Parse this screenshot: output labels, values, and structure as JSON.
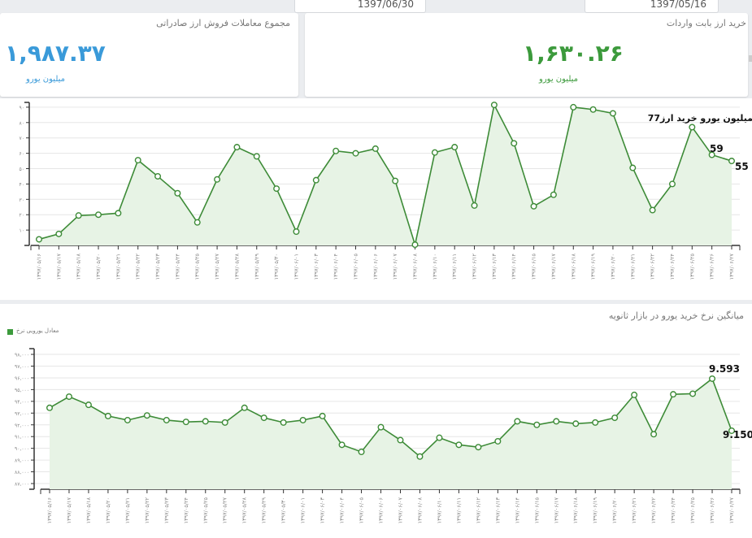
{
  "filters": {
    "to_date": "1397/06/30",
    "from_date": "1397/05/16"
  },
  "cards": {
    "export": {
      "title": "مجموع معاملات فروش ارز صادراتی",
      "value": "۱,۹۸۷.۳۷",
      "unit": "میلیون یورو",
      "color": "#3a9ad9"
    },
    "import": {
      "title": "خرید ارز بابت واردات",
      "value": "۱,۶۳۰.۲۶",
      "unit": "میلیون یورو",
      "color": "#3c9a3c"
    }
  },
  "colors": {
    "line": "#3d8b37",
    "fill": "#e7f3e5",
    "grid": "#e6e6e6",
    "axis": "#333333"
  },
  "chart_data": [
    {
      "type": "area",
      "title": "",
      "xlabel": "",
      "ylabel": "",
      "ylim": [
        0,
        95
      ],
      "yticks": [
        10,
        20,
        30,
        40,
        50,
        60,
        70,
        80,
        90
      ],
      "ytick_labels": [
        "۱۰",
        "۲۰",
        "۳۰",
        "۴۰",
        "۵۰",
        "۶۰",
        "۷۰",
        "۸۰",
        "۹۰"
      ],
      "grid": true,
      "categories": [
        "۱۳۹۷/۰۵/۱۶",
        "۱۳۹۷/۰۵/۱۷",
        "۱۳۹۷/۰۵/۱۸",
        "۱۳۹۷/۰۵/۲۰",
        "۱۳۹۷/۰۵/۲۱",
        "۱۳۹۷/۰۵/۲۲",
        "۱۳۹۷/۰۵/۲۳",
        "۱۳۹۷/۰۵/۲۴",
        "۱۳۹۷/۰۵/۲۵",
        "۱۳۹۷/۰۵/۲۷",
        "۱۳۹۷/۰۵/۲۸",
        "۱۳۹۷/۰۵/۲۹",
        "۱۳۹۷/۰۵/۳۰",
        "۱۳۹۷/۰۶/۰۱",
        "۱۳۹۷/۰۶/۰۳",
        "۱۳۹۷/۰۶/۰۴",
        "۱۳۹۷/۰۶/۰۵",
        "۱۳۹۷/۰۶/۰۶",
        "۱۳۹۷/۰۶/۰۷",
        "۱۳۹۷/۰۶/۰۸",
        "۱۳۹۷/۰۶/۱۰",
        "۱۳۹۷/۰۶/۱۱",
        "۱۳۹۷/۰۶/۱۲",
        "۱۳۹۷/۰۶/۱۳",
        "۱۳۹۷/۰۶/۱۴",
        "۱۳۹۷/۰۶/۱۵",
        "۱۳۹۷/۰۶/۱۷",
        "۱۳۹۷/۰۶/۱۸",
        "۱۳۹۷/۰۶/۱۹",
        "۱۳۹۷/۰۶/۲۰",
        "۱۳۹۷/۰۶/۲۱",
        "۱۳۹۷/۰۶/۲۲",
        "۱۳۹۷/۰۶/۲۴",
        "۱۳۹۷/۰۶/۲۵",
        "۱۳۹۷/۰۶/۲۶",
        "۱۳۹۷/۰۶/۲۷"
      ],
      "series": [
        {
          "name": "میلیون یورو خرید ارز",
          "values": [
            4,
            7.5,
            19.5,
            20,
            21,
            55.5,
            45,
            34,
            15,
            43,
            64,
            58,
            37,
            9,
            42.5,
            61.5,
            60,
            63,
            42,
            0.5,
            60.5,
            64,
            26,
            91.5,
            66.5,
            25.5,
            33,
            90,
            88.5,
            86,
            50.5,
            23,
            40,
            77,
            59,
            55
          ]
        }
      ],
      "annotations": [
        {
          "index": 33,
          "text": "77میلیون یورو خرید ارز"
        },
        {
          "index": 34,
          "text": "59"
        },
        {
          "index": 35,
          "text": "55"
        }
      ]
    },
    {
      "type": "area",
      "title": "میانگین نرخ خرید یورو در بازار ثانویه",
      "xlabel": "",
      "ylabel": "",
      "ylim": [
        86700,
        98500
      ],
      "yticks": [
        87000,
        88000,
        89000,
        90000,
        91000,
        92000,
        93000,
        94000,
        95000,
        96000,
        97000,
        98000
      ],
      "ytick_labels": [
        "۸۷,۰۰۰",
        "۸۸,۰۰۰",
        "۸۹,۰۰۰",
        "۹۰,۰۰۰",
        "۹۱,۰۰۰",
        "۹۲,۰۰۰",
        "۹۳,۰۰۰",
        "۹۴,۰۰۰",
        "۹۵,۰۰۰",
        "۹۶,۰۰۰",
        "۹۷,۰۰۰",
        "۹۸,۰۰۰"
      ],
      "grid": true,
      "legend": {
        "position": "top-left",
        "entries": [
          "معادل یورویی نرخ"
        ]
      },
      "categories": [
        "۱۳۹۷/۰۵/۱۶",
        "۱۳۹۷/۰۵/۱۷",
        "۱۳۹۷/۰۵/۱۸",
        "۱۳۹۷/۰۵/۲۰",
        "۱۳۹۷/۰۵/۲۱",
        "۱۳۹۷/۰۵/۲۲",
        "۱۳۹۷/۰۵/۲۳",
        "۱۳۹۷/۰۵/۲۴",
        "۱۳۹۷/۰۵/۲۵",
        "۱۳۹۷/۰۵/۲۷",
        "۱۳۹۷/۰۵/۲۸",
        "۱۳۹۷/۰۵/۲۹",
        "۱۳۹۷/۰۵/۳۰",
        "۱۳۹۷/۰۶/۰۱",
        "۱۳۹۷/۰۶/۰۳",
        "۱۳۹۷/۰۶/۰۴",
        "۱۳۹۷/۰۶/۰۵",
        "۱۳۹۷/۰۶/۰۶",
        "۱۳۹۷/۰۶/۰۷",
        "۱۳۹۷/۰۶/۰۸",
        "۱۳۹۷/۰۶/۱۰",
        "۱۳۹۷/۰۶/۱۱",
        "۱۳۹۷/۰۶/۱۲",
        "۱۳۹۷/۰۶/۱۳",
        "۱۳۹۷/۰۶/۱۴",
        "۱۳۹۷/۰۶/۱۵",
        "۱۳۹۷/۰۶/۱۷",
        "۱۳۹۷/۰۶/۱۸",
        "۱۳۹۷/۰۶/۱۹",
        "۱۳۹۷/۰۶/۲۰",
        "۱۳۹۷/۰۶/۲۱",
        "۱۳۹۷/۰۶/۲۲",
        "۱۳۹۷/۰۶/۲۴",
        "۱۳۹۷/۰۶/۲۵",
        "۱۳۹۷/۰۶/۲۶",
        "۱۳۹۷/۰۶/۲۷"
      ],
      "series": [
        {
          "name": "معادل یورویی نرخ",
          "values": [
            93450,
            94400,
            93700,
            92750,
            92400,
            92800,
            92400,
            92250,
            92300,
            92200,
            93450,
            92600,
            92200,
            92400,
            92750,
            90300,
            89700,
            91800,
            90700,
            89300,
            90900,
            90300,
            90100,
            90600,
            92300,
            92000,
            92300,
            92100,
            92200,
            92600,
            94550,
            91200,
            94600,
            94650,
            95930,
            91500
          ]
        }
      ],
      "annotations": [
        {
          "index": 34,
          "text": "9.593"
        },
        {
          "index": 35,
          "text": "9.150"
        }
      ]
    }
  ]
}
